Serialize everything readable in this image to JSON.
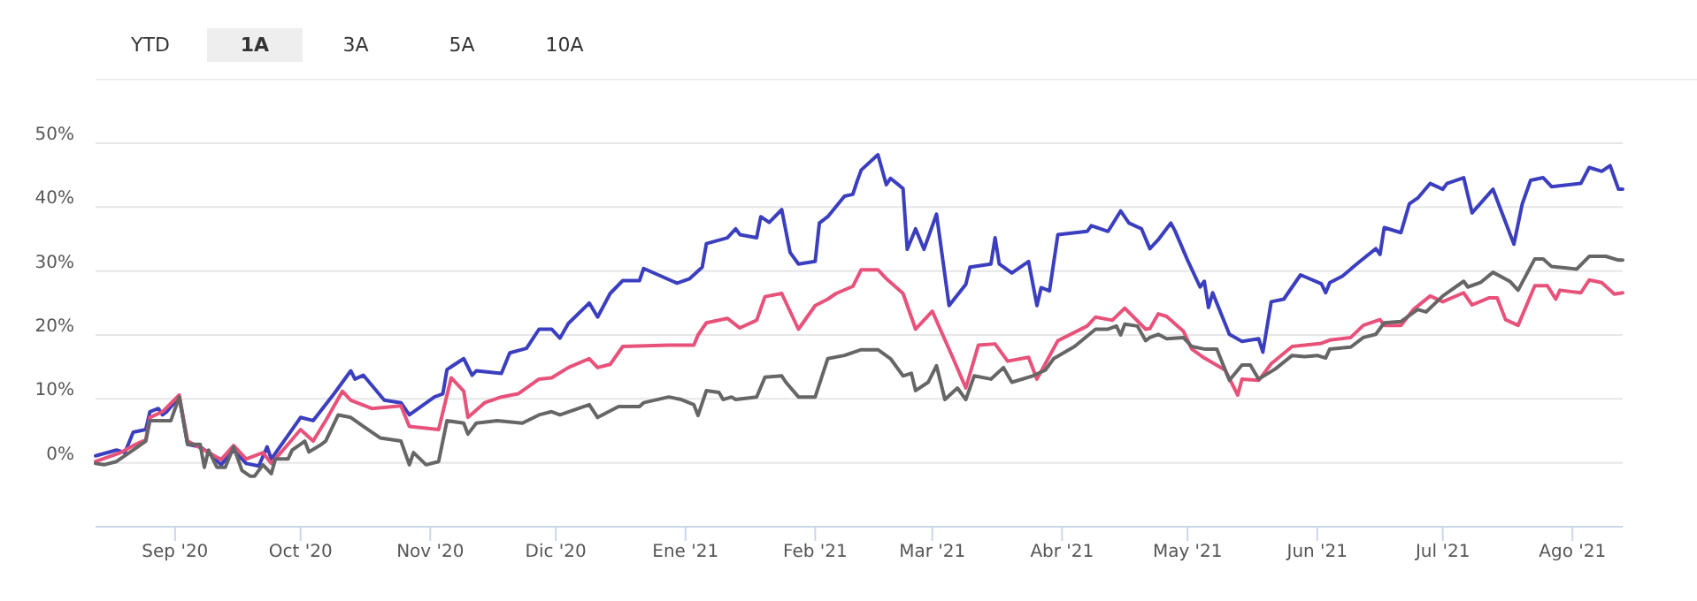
{
  "chart_data": {
    "type": "line",
    "annotations": [
      "YTD",
      "1A",
      "3A",
      "5A",
      "10A"
    ],
    "xlim": [
      "2020-08-13",
      "2021-08-13"
    ],
    "xticks": [
      {
        "value": "2020-09-01",
        "label": "Sep '20"
      },
      {
        "value": "2020-10-01",
        "label": "Oct '20"
      },
      {
        "value": "2020-11-01",
        "label": "Nov '20"
      },
      {
        "value": "2020-12-01",
        "label": "Dic '20"
      },
      {
        "value": "2021-01-01",
        "label": "Ene '21"
      },
      {
        "value": "2021-02-01",
        "label": "Feb '21"
      },
      {
        "value": "2021-03-01",
        "label": "Mar '21"
      },
      {
        "value": "2021-04-01",
        "label": "Abr '21"
      },
      {
        "value": "2021-05-01",
        "label": "May '21"
      },
      {
        "value": "2021-06-01",
        "label": "Jun '21"
      },
      {
        "value": "2021-07-01",
        "label": "Jul '21"
      },
      {
        "value": "2021-08-01",
        "label": "Ago '21"
      }
    ],
    "ylim": [
      -10,
      50
    ],
    "yticks": [
      {
        "value": 0,
        "label": "0%"
      },
      {
        "value": 10,
        "label": "10%"
      },
      {
        "value": 20,
        "label": "20%"
      },
      {
        "value": 30,
        "label": "30%"
      },
      {
        "value": 40,
        "label": "40%"
      },
      {
        "value": 50,
        "label": "50%"
      }
    ],
    "grid": "y",
    "marker": "none",
    "line_style": "solid",
    "series": [
      {
        "color": "#3b3fbf",
        "x": [
          "2020-08-13",
          "2020-08-18",
          "2020-08-20",
          "2020-08-22",
          "2020-08-25",
          "2020-08-26",
          "2020-08-28",
          "2020-08-29",
          "2020-08-30",
          "2020-09-02",
          "2020-09-04",
          "2020-09-07",
          "2020-09-09",
          "2020-09-12",
          "2020-09-15",
          "2020-09-18",
          "2020-09-21",
          "2020-09-23",
          "2020-09-24",
          "2020-09-28",
          "2020-10-01",
          "2020-10-04",
          "2020-10-09",
          "2020-10-13",
          "2020-10-14",
          "2020-10-16",
          "2020-10-21",
          "2020-10-25",
          "2020-10-27",
          "2020-11-02",
          "2020-11-04",
          "2020-11-05",
          "2020-11-09",
          "2020-11-11",
          "2020-11-12",
          "2020-11-18",
          "2020-11-20",
          "2020-11-24",
          "2020-11-27",
          "2020-11-30",
          "2020-12-02",
          "2020-12-04",
          "2020-12-09",
          "2020-12-11",
          "2020-12-14",
          "2020-12-17",
          "2020-12-21",
          "2020-12-22",
          "2020-12-30",
          "2021-01-02",
          "2021-01-05",
          "2021-01-06",
          "2021-01-11",
          "2021-01-13",
          "2021-01-14",
          "2021-01-18",
          "2021-01-19",
          "2021-01-21",
          "2021-01-24",
          "2021-01-26",
          "2021-01-28",
          "2021-02-01",
          "2021-02-02",
          "2021-02-04",
          "2021-02-08",
          "2021-02-10",
          "2021-02-11",
          "2021-02-12",
          "2021-02-16",
          "2021-02-18",
          "2021-02-19",
          "2021-02-22",
          "2021-02-23",
          "2021-02-25",
          "2021-02-27",
          "2021-03-02",
          "2021-03-05",
          "2021-03-09",
          "2021-03-10",
          "2021-03-15",
          "2021-03-16",
          "2021-03-17",
          "2021-03-20",
          "2021-03-24",
          "2021-03-26",
          "2021-03-27",
          "2021-03-29",
          "2021-03-31",
          "2021-04-07",
          "2021-04-08",
          "2021-04-12",
          "2021-04-15",
          "2021-04-17",
          "2021-04-20",
          "2021-04-22",
          "2021-04-24",
          "2021-04-27",
          "2021-04-28",
          "2021-05-01",
          "2021-05-04",
          "2021-05-05",
          "2021-05-06",
          "2021-05-07",
          "2021-05-11",
          "2021-05-14",
          "2021-05-18",
          "2021-05-19",
          "2021-05-21",
          "2021-05-24",
          "2021-05-28",
          "2021-06-02",
          "2021-06-03",
          "2021-06-04",
          "2021-06-07",
          "2021-06-11",
          "2021-06-15",
          "2021-06-16",
          "2021-06-17",
          "2021-06-21",
          "2021-06-23",
          "2021-06-25",
          "2021-06-28",
          "2021-07-01",
          "2021-07-02",
          "2021-07-06",
          "2021-07-08",
          "2021-07-13",
          "2021-07-18",
          "2021-07-20",
          "2021-07-22",
          "2021-07-25",
          "2021-07-27",
          "2021-08-03",
          "2021-08-05",
          "2021-08-08",
          "2021-08-10",
          "2021-08-12",
          "2021-08-13"
        ],
        "values": [
          1.1,
          2.0,
          1.6,
          4.8,
          5.2,
          8.0,
          8.5,
          7.5,
          8.0,
          10.3,
          2.9,
          2.5,
          1.6,
          -0.3,
          2.0,
          -0.1,
          -0.5,
          2.5,
          0.6,
          4.3,
          7.1,
          6.6,
          10.8,
          14.4,
          13.1,
          13.7,
          9.8,
          9.4,
          7.5,
          10.3,
          10.8,
          14.6,
          16.3,
          13.7,
          14.4,
          14.0,
          17.2,
          17.9,
          20.9,
          20.9,
          19.5,
          21.8,
          25.0,
          22.8,
          26.5,
          28.5,
          28.5,
          30.4,
          28.1,
          28.8,
          30.6,
          34.3,
          35.2,
          36.6,
          35.7,
          35.2,
          38.5,
          37.6,
          39.6,
          32.9,
          31.1,
          31.5,
          37.5,
          38.5,
          41.7,
          42.0,
          44.0,
          45.8,
          48.2,
          43.5,
          44.5,
          42.9,
          33.4,
          36.6,
          33.4,
          38.9,
          24.6,
          27.9,
          30.6,
          31.1,
          35.2,
          31.1,
          29.7,
          31.5,
          24.6,
          27.4,
          26.9,
          35.7,
          36.2,
          37.1,
          36.2,
          39.4,
          37.5,
          36.6,
          33.5,
          34.9,
          37.5,
          36.3,
          31.7,
          27.5,
          28.4,
          24.3,
          26.6,
          20.1,
          19.0,
          19.4,
          17.3,
          25.2,
          25.6,
          29.4,
          28.0,
          26.6,
          28.2,
          29.2,
          31.4,
          33.5,
          32.6,
          36.8,
          36.0,
          40.5,
          41.4,
          43.7,
          42.8,
          43.7,
          44.6,
          39.1,
          42.8,
          34.2,
          40.5,
          44.2,
          44.6,
          43.2,
          43.7,
          46.2,
          45.6,
          46.5,
          42.8,
          42.8
        ]
      },
      {
        "color": "#e8527a",
        "x": [
          "2020-08-13",
          "2020-08-19",
          "2020-08-22",
          "2020-08-25",
          "2020-08-26",
          "2020-08-29",
          "2020-09-02",
          "2020-09-04",
          "2020-09-08",
          "2020-09-12",
          "2020-09-15",
          "2020-09-18",
          "2020-09-22",
          "2020-09-24",
          "2020-09-28",
          "2020-10-01",
          "2020-10-04",
          "2020-10-07",
          "2020-10-11",
          "2020-10-13",
          "2020-10-18",
          "2020-10-25",
          "2020-10-27",
          "2020-11-03",
          "2020-11-06",
          "2020-11-09",
          "2020-11-10",
          "2020-11-14",
          "2020-11-18",
          "2020-11-22",
          "2020-11-27",
          "2020-11-30",
          "2020-12-04",
          "2020-12-09",
          "2020-12-11",
          "2020-12-14",
          "2020-12-17",
          "2020-12-28",
          "2021-01-03",
          "2021-01-04",
          "2021-01-06",
          "2021-01-11",
          "2021-01-14",
          "2021-01-18",
          "2021-01-20",
          "2021-01-24",
          "2021-01-28",
          "2021-02-01",
          "2021-02-04",
          "2021-02-06",
          "2021-02-10",
          "2021-02-12",
          "2021-02-16",
          "2021-02-18",
          "2021-02-22",
          "2021-02-25",
          "2021-03-01",
          "2021-03-06",
          "2021-03-09",
          "2021-03-12",
          "2021-03-16",
          "2021-03-19",
          "2021-03-24",
          "2021-03-26",
          "2021-03-31",
          "2021-04-07",
          "2021-04-09",
          "2021-04-13",
          "2021-04-16",
          "2021-04-21",
          "2021-04-22",
          "2021-04-24",
          "2021-04-26",
          "2021-04-30",
          "2021-05-02",
          "2021-05-05",
          "2021-05-10",
          "2021-05-13",
          "2021-05-14",
          "2021-05-18",
          "2021-05-21",
          "2021-05-26",
          "2021-06-02",
          "2021-06-04",
          "2021-06-09",
          "2021-06-12",
          "2021-06-16",
          "2021-06-17",
          "2021-06-21",
          "2021-06-24",
          "2021-06-28",
          "2021-07-01",
          "2021-07-06",
          "2021-07-08",
          "2021-07-12",
          "2021-07-14",
          "2021-07-16",
          "2021-07-19",
          "2021-07-23",
          "2021-07-26",
          "2021-07-28",
          "2021-07-29",
          "2021-08-03",
          "2021-08-05",
          "2021-08-08",
          "2021-08-10",
          "2021-08-11",
          "2021-08-13"
        ],
        "values": [
          0.2,
          1.6,
          2.7,
          3.6,
          7.1,
          8.0,
          10.6,
          3.4,
          2.0,
          0.5,
          2.7,
          0.6,
          1.6,
          -0.1,
          2.9,
          5.2,
          3.4,
          6.6,
          11.2,
          9.8,
          8.5,
          8.9,
          5.7,
          5.2,
          13.3,
          11.2,
          7.1,
          9.4,
          10.3,
          10.8,
          13.1,
          13.3,
          14.9,
          16.3,
          14.9,
          15.4,
          18.2,
          18.4,
          18.4,
          20.0,
          21.9,
          22.6,
          21.1,
          22.3,
          26.0,
          26.5,
          20.9,
          24.6,
          25.6,
          26.5,
          27.6,
          30.2,
          30.2,
          28.8,
          26.5,
          20.9,
          23.7,
          16.3,
          11.7,
          18.4,
          18.6,
          15.9,
          16.5,
          13.1,
          19.1,
          21.4,
          22.8,
          22.3,
          24.2,
          20.9,
          21.0,
          23.3,
          22.9,
          20.6,
          17.8,
          16.4,
          14.5,
          10.6,
          13.1,
          12.9,
          15.5,
          18.2,
          18.7,
          19.2,
          19.6,
          21.5,
          22.4,
          21.5,
          21.5,
          24.0,
          26.1,
          25.2,
          26.6,
          24.7,
          25.8,
          25.8,
          22.4,
          21.5,
          27.7,
          27.7,
          25.6,
          27.0,
          26.6,
          28.6,
          28.2,
          27.0,
          26.4,
          26.6
        ]
      },
      {
        "color": "#666666",
        "x": [
          "2020-08-13",
          "2020-08-15",
          "2020-08-18",
          "2020-08-22",
          "2020-08-25",
          "2020-08-26",
          "2020-08-31",
          "2020-09-02",
          "2020-09-04",
          "2020-09-07",
          "2020-09-08",
          "2020-09-09",
          "2020-09-11",
          "2020-09-13",
          "2020-09-15",
          "2020-09-17",
          "2020-09-19",
          "2020-09-20",
          "2020-09-22",
          "2020-09-24",
          "2020-09-25",
          "2020-09-28",
          "2020-09-29",
          "2020-10-01",
          "2020-10-02",
          "2020-10-03",
          "2020-10-06",
          "2020-10-07",
          "2020-10-10",
          "2020-10-13",
          "2020-10-16",
          "2020-10-20",
          "2020-10-25",
          "2020-10-27",
          "2020-10-28",
          "2020-10-31",
          "2020-11-03",
          "2020-11-05",
          "2020-11-09",
          "2020-11-10",
          "2020-11-12",
          "2020-11-17",
          "2020-11-23",
          "2020-11-27",
          "2020-11-30",
          "2020-12-02",
          "2020-12-09",
          "2020-12-11",
          "2020-12-16",
          "2020-12-21",
          "2020-12-22",
          "2020-12-28",
          "2020-12-31",
          "2021-01-03",
          "2021-01-04",
          "2021-01-06",
          "2021-01-09",
          "2021-01-10",
          "2021-01-12",
          "2021-01-13",
          "2021-01-18",
          "2021-01-20",
          "2021-01-24",
          "2021-01-25",
          "2021-01-28",
          "2021-02-01",
          "2021-02-04",
          "2021-02-08",
          "2021-02-12",
          "2021-02-16",
          "2021-02-19",
          "2021-02-22",
          "2021-02-24",
          "2021-02-25",
          "2021-02-28",
          "2021-03-02",
          "2021-03-04",
          "2021-03-07",
          "2021-03-09",
          "2021-03-11",
          "2021-03-15",
          "2021-03-18",
          "2021-03-20",
          "2021-03-25",
          "2021-03-28",
          "2021-03-30",
          "2021-04-04",
          "2021-04-09",
          "2021-04-12",
          "2021-04-14",
          "2021-04-15",
          "2021-04-16",
          "2021-04-19",
          "2021-04-21",
          "2021-04-22",
          "2021-04-24",
          "2021-04-26",
          "2021-04-30",
          "2021-05-02",
          "2021-05-05",
          "2021-05-08",
          "2021-05-11",
          "2021-05-14",
          "2021-05-16",
          "2021-05-18",
          "2021-05-22",
          "2021-05-26",
          "2021-05-29",
          "2021-06-01",
          "2021-06-03",
          "2021-06-04",
          "2021-06-09",
          "2021-06-12",
          "2021-06-15",
          "2021-06-17",
          "2021-06-21",
          "2021-06-25",
          "2021-06-27",
          "2021-07-01",
          "2021-07-06",
          "2021-07-07",
          "2021-07-10",
          "2021-07-13",
          "2021-07-17",
          "2021-07-19",
          "2021-07-23",
          "2021-07-25",
          "2021-07-27",
          "2021-08-02",
          "2021-08-05",
          "2021-08-09",
          "2021-08-12",
          "2021-08-13"
        ],
        "values": [
          -0.1,
          -0.3,
          0.2,
          2.0,
          3.4,
          6.6,
          6.6,
          10.3,
          2.9,
          2.9,
          -0.7,
          2.0,
          -0.7,
          -0.7,
          2.5,
          -1.2,
          -2.1,
          -2.1,
          -0.3,
          -1.7,
          0.6,
          0.6,
          2.0,
          2.9,
          3.4,
          1.7,
          2.9,
          3.4,
          7.5,
          7.1,
          5.7,
          3.9,
          3.4,
          -0.3,
          1.6,
          -0.3,
          0.2,
          6.6,
          6.2,
          4.5,
          6.2,
          6.6,
          6.2,
          7.5,
          8.0,
          7.5,
          9.1,
          7.1,
          8.8,
          8.8,
          9.4,
          10.3,
          9.9,
          9.1,
          7.4,
          11.3,
          11.0,
          9.9,
          10.3,
          9.9,
          10.3,
          13.4,
          13.6,
          12.6,
          10.3,
          10.3,
          16.3,
          16.8,
          17.7,
          17.7,
          16.3,
          13.6,
          14.0,
          11.3,
          12.6,
          15.2,
          9.9,
          11.7,
          9.9,
          13.6,
          13.1,
          14.9,
          12.6,
          13.6,
          14.5,
          16.3,
          18.2,
          20.9,
          20.9,
          21.4,
          20.0,
          21.7,
          21.4,
          19.1,
          19.6,
          20.1,
          19.4,
          19.6,
          18.2,
          17.8,
          17.8,
          12.9,
          15.3,
          15.3,
          13.1,
          14.7,
          16.8,
          16.6,
          16.8,
          16.4,
          17.8,
          18.1,
          19.6,
          20.1,
          21.9,
          22.1,
          24.0,
          23.6,
          26.1,
          28.4,
          27.5,
          28.2,
          29.8,
          28.4,
          27.0,
          31.9,
          31.9,
          30.7,
          30.3,
          32.3,
          32.3,
          31.7,
          31.7
        ]
      }
    ]
  }
}
